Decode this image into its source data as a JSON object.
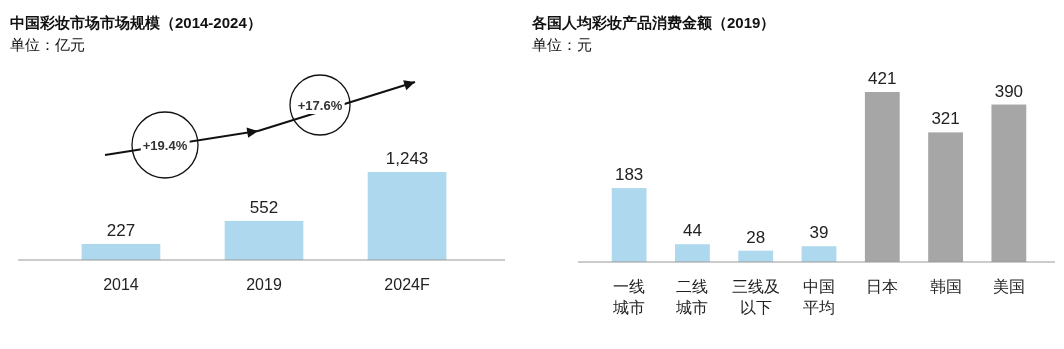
{
  "chart_data": [
    {
      "type": "bar",
      "title": "中国彩妆市场市场规模（2014-2024）",
      "subtitle": "单位：亿元",
      "categories": [
        "2014",
        "2019",
        "2024F"
      ],
      "values": [
        227,
        552,
        1243
      ],
      "value_labels": [
        "227",
        "552",
        "1,243"
      ],
      "color": "#add8ed",
      "annotations": [
        "+19.4%",
        "+17.6%"
      ]
    },
    {
      "type": "bar",
      "title": "各国人均彩妆产品消费金额（2019）",
      "subtitle": "单位：元",
      "categories": [
        "一线城市",
        "二线城市",
        "三线及以下",
        "中国平均",
        "日本",
        "韩国",
        "美国"
      ],
      "values": [
        183,
        44,
        28,
        39,
        421,
        321,
        390
      ],
      "colors": [
        "#add8ed",
        "#add8ed",
        "#add8ed",
        "#add8ed",
        "#a6a6a6",
        "#a6a6a6",
        "#a6a6a6"
      ],
      "data_labels": true
    }
  ]
}
